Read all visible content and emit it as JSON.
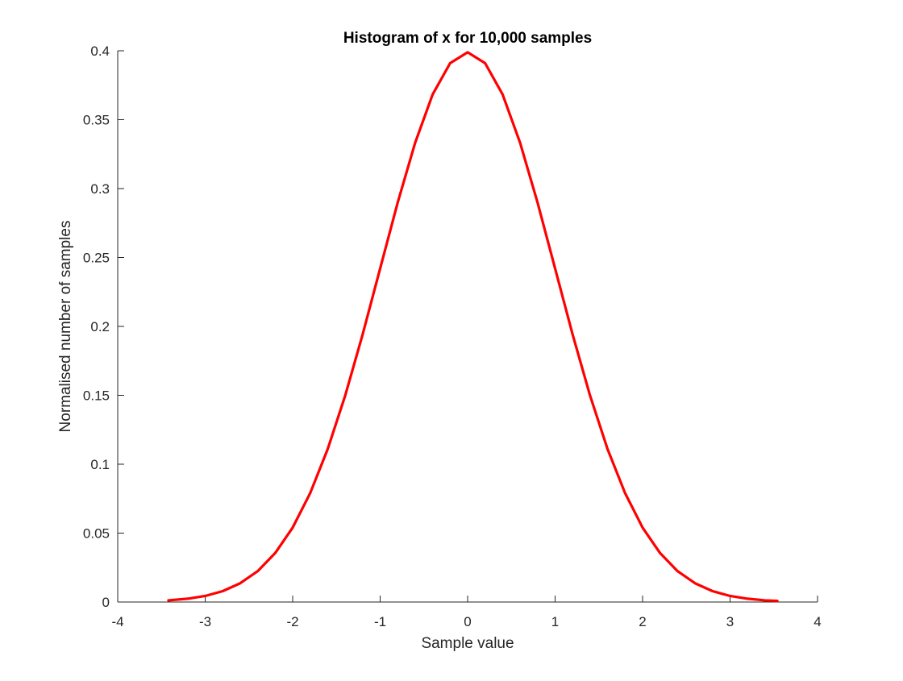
{
  "chart_data": {
    "type": "line",
    "title": "Histogram of x for 10,000 samples",
    "xlabel": "Sample value",
    "ylabel": "Normalised number of samples",
    "xlim": [
      -4,
      4
    ],
    "ylim": [
      0,
      0.4
    ],
    "xticks": [
      -4,
      -3,
      -2,
      -1,
      0,
      1,
      2,
      3,
      4
    ],
    "xtick_labels": [
      "-4",
      "-3",
      "-2",
      "-1",
      "0",
      "1",
      "2",
      "3",
      "4"
    ],
    "yticks": [
      0,
      0.05,
      0.1,
      0.15,
      0.2,
      0.25,
      0.3,
      0.35,
      0.4
    ],
    "ytick_labels": [
      "0",
      "0.05",
      "0.1",
      "0.15",
      "0.2",
      "0.25",
      "0.3",
      "0.35",
      "0.4"
    ],
    "grid": false,
    "box": false,
    "series": [
      {
        "color": "#ff0000",
        "x": [
          -3.42,
          -3.2,
          -3.0,
          -2.8,
          -2.6,
          -2.4,
          -2.2,
          -2.0,
          -1.8,
          -1.6,
          -1.4,
          -1.2,
          -1.0,
          -0.8,
          -0.6,
          -0.4,
          -0.2,
          0.0,
          0.2,
          0.4,
          0.6,
          0.8,
          1.0,
          1.2,
          1.4,
          1.6,
          1.8,
          2.0,
          2.2,
          2.4,
          2.6,
          2.8,
          3.0,
          3.2,
          3.4,
          3.54
        ],
        "y": [
          0.0012,
          0.0024,
          0.0044,
          0.0079,
          0.0136,
          0.0224,
          0.0355,
          0.054,
          0.079,
          0.1109,
          0.1497,
          0.1942,
          0.242,
          0.2897,
          0.3332,
          0.3683,
          0.391,
          0.3989,
          0.391,
          0.3683,
          0.3332,
          0.2897,
          0.242,
          0.1942,
          0.1497,
          0.1109,
          0.079,
          0.054,
          0.0355,
          0.0224,
          0.0136,
          0.0079,
          0.0044,
          0.0024,
          0.0012,
          0.0008
        ]
      }
    ]
  }
}
